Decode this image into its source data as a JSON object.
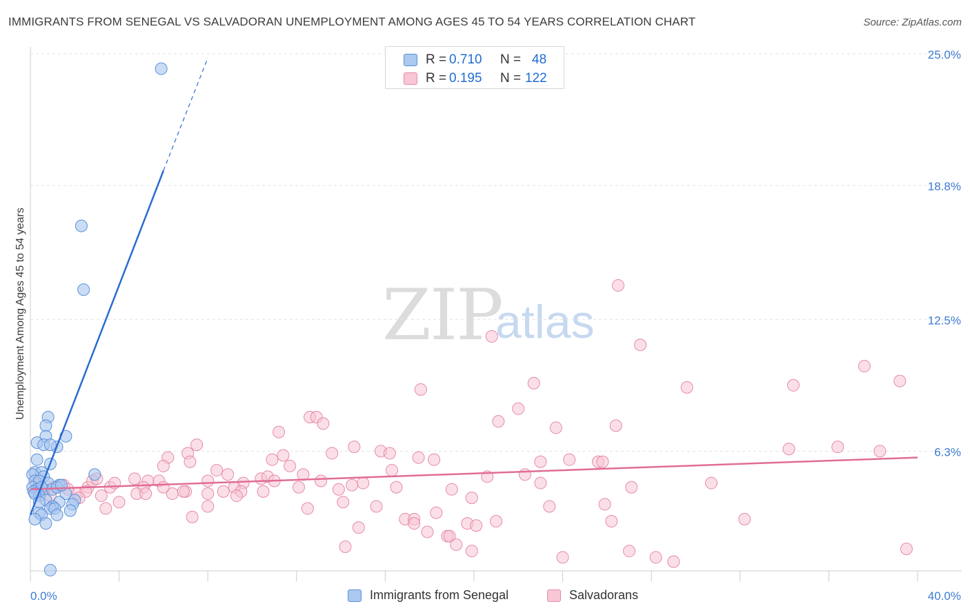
{
  "title": "IMMIGRANTS FROM SENEGAL VS SALVADORAN UNEMPLOYMENT AMONG AGES 45 TO 54 YEARS CORRELATION CHART",
  "source": "Source: ZipAtlas.com",
  "watermark": {
    "zip": "ZIP",
    "atlas": "atlas"
  },
  "legend": {
    "rows": [
      {
        "r_label": "R =",
        "r_value": "0.710",
        "n_label": "N =",
        "n_value": "48",
        "fill": "#aac8f0",
        "stroke": "#5a8fd6"
      },
      {
        "r_label": "R =",
        "r_value": "0.195",
        "n_label": "N =",
        "n_value": "122",
        "fill": "#f8c6d5",
        "stroke": "#e889a8"
      }
    ]
  },
  "colors": {
    "blue_fill": "#a9c6ef",
    "blue_stroke": "#5b90d8",
    "blue_line": "#2a6bd0",
    "pink_fill": "#f7c4d3",
    "pink_stroke": "#e58aa8",
    "pink_line": "#e06c96",
    "grid": "#e2e2e2",
    "tick_label": "#3d7bd1",
    "axis": "#cccccc"
  },
  "chart_data": {
    "type": "scatter",
    "title": "IMMIGRANTS FROM SENEGAL VS SALVADORAN UNEMPLOYMENT AMONG AGES 45 TO 54 YEARS CORRELATION CHART",
    "xlabel": "",
    "ylabel": "Unemployment Among Ages 45 to 54 years",
    "xlim": [
      0,
      40
    ],
    "ylim": [
      0,
      25.0
    ],
    "x_tick_labels": [
      "0.0%",
      "40.0%"
    ],
    "y_ticks": [
      6.3,
      12.5,
      18.8,
      25.0
    ],
    "y_tick_labels": [
      "6.3%",
      "12.5%",
      "18.8%",
      "25.0%"
    ],
    "grid": true,
    "legend_position": "top-center",
    "series": [
      {
        "name": "Immigrants from Senegal",
        "r": 0.71,
        "n": 48,
        "trend": {
          "x0": 0.0,
          "y0": 3.3,
          "x1": 6.0,
          "y1": 19.5,
          "dash_x1": 8.0,
          "dash_y1": 24.8
        },
        "points": [
          [
            5.9,
            24.3
          ],
          [
            2.3,
            16.9
          ],
          [
            2.4,
            13.9
          ],
          [
            0.8,
            7.9
          ],
          [
            0.7,
            7.5
          ],
          [
            1.6,
            7.0
          ],
          [
            0.7,
            7.0
          ],
          [
            0.3,
            6.7
          ],
          [
            0.6,
            6.6
          ],
          [
            1.2,
            6.5
          ],
          [
            0.9,
            6.6
          ],
          [
            0.3,
            5.9
          ],
          [
            0.9,
            5.7
          ],
          [
            0.2,
            5.3
          ],
          [
            0.5,
            5.3
          ],
          [
            0.1,
            5.2
          ],
          [
            2.9,
            5.2
          ],
          [
            0.6,
            5.1
          ],
          [
            0.2,
            4.9
          ],
          [
            0.4,
            4.9
          ],
          [
            0.8,
            4.8
          ],
          [
            1.3,
            4.7
          ],
          [
            0.1,
            4.6
          ],
          [
            0.6,
            4.5
          ],
          [
            1.0,
            4.5
          ],
          [
            0.3,
            4.5
          ],
          [
            0.5,
            4.6
          ],
          [
            0.15,
            4.4
          ],
          [
            1.2,
            4.6
          ],
          [
            0.4,
            4.2
          ],
          [
            0.2,
            4.3
          ],
          [
            1.6,
            4.3
          ],
          [
            2.0,
            4.0
          ],
          [
            0.7,
            4.0
          ],
          [
            1.3,
            3.9
          ],
          [
            1.0,
            3.7
          ],
          [
            1.9,
            3.8
          ],
          [
            0.9,
            3.6
          ],
          [
            1.1,
            3.6
          ],
          [
            1.8,
            3.5
          ],
          [
            0.4,
            3.4
          ],
          [
            1.2,
            3.3
          ],
          [
            0.5,
            3.3
          ],
          [
            0.2,
            3.1
          ],
          [
            0.7,
            2.9
          ],
          [
            0.4,
            3.9
          ],
          [
            1.4,
            4.7
          ],
          [
            0.9,
            0.7
          ]
        ]
      },
      {
        "name": "Salvadorans",
        "r": 0.195,
        "n": 122,
        "trend": {
          "x0": 0.0,
          "y0": 4.5,
          "x1": 40.0,
          "y1": 6.0
        },
        "points": [
          [
            26.5,
            14.1
          ],
          [
            20.8,
            11.7
          ],
          [
            27.5,
            11.3
          ],
          [
            37.6,
            10.3
          ],
          [
            39.2,
            9.6
          ],
          [
            22.7,
            9.5
          ],
          [
            29.6,
            9.3
          ],
          [
            34.4,
            9.4
          ],
          [
            17.6,
            9.2
          ],
          [
            22.0,
            8.3
          ],
          [
            12.6,
            7.9
          ],
          [
            12.9,
            7.9
          ],
          [
            13.2,
            7.6
          ],
          [
            21.1,
            7.7
          ],
          [
            11.2,
            7.2
          ],
          [
            23.7,
            7.4
          ],
          [
            26.4,
            7.5
          ],
          [
            7.5,
            6.6
          ],
          [
            14.6,
            6.5
          ],
          [
            15.8,
            6.3
          ],
          [
            13.6,
            6.2
          ],
          [
            16.2,
            6.2
          ],
          [
            34.2,
            6.4
          ],
          [
            36.4,
            6.5
          ],
          [
            38.3,
            6.3
          ],
          [
            7.1,
            6.2
          ],
          [
            11.4,
            6.1
          ],
          [
            6.2,
            6.0
          ],
          [
            17.5,
            6.0
          ],
          [
            18.2,
            5.9
          ],
          [
            23.0,
            5.8
          ],
          [
            25.6,
            5.8
          ],
          [
            24.3,
            5.9
          ],
          [
            25.8,
            5.8
          ],
          [
            10.9,
            5.9
          ],
          [
            7.2,
            5.8
          ],
          [
            11.7,
            5.6
          ],
          [
            6.0,
            5.6
          ],
          [
            8.4,
            5.4
          ],
          [
            8.9,
            5.2
          ],
          [
            4.7,
            5.0
          ],
          [
            5.3,
            4.9
          ],
          [
            5.8,
            4.9
          ],
          [
            8.0,
            4.9
          ],
          [
            9.6,
            4.8
          ],
          [
            10.4,
            5.0
          ],
          [
            12.3,
            5.2
          ],
          [
            13.1,
            4.9
          ],
          [
            14.5,
            4.7
          ],
          [
            15.0,
            4.8
          ],
          [
            16.3,
            5.4
          ],
          [
            20.6,
            5.1
          ],
          [
            22.3,
            5.2
          ],
          [
            10.7,
            5.1
          ],
          [
            12.1,
            4.6
          ],
          [
            11.0,
            4.9
          ],
          [
            9.2,
            4.6
          ],
          [
            9.5,
            4.4
          ],
          [
            5.1,
            4.6
          ],
          [
            7.0,
            4.4
          ],
          [
            4.8,
            4.3
          ],
          [
            6.4,
            4.3
          ],
          [
            6.9,
            4.4
          ],
          [
            8.0,
            4.3
          ],
          [
            8.7,
            4.4
          ],
          [
            9.3,
            4.2
          ],
          [
            10.5,
            4.4
          ],
          [
            3.2,
            4.2
          ],
          [
            3.6,
            4.6
          ],
          [
            2.6,
            4.6
          ],
          [
            2.1,
            4.3
          ],
          [
            2.8,
            4.9
          ],
          [
            3.0,
            5.0
          ],
          [
            1.5,
            4.7
          ],
          [
            1.0,
            4.6
          ],
          [
            0.9,
            4.2
          ],
          [
            1.7,
            4.5
          ],
          [
            0.5,
            4.4
          ],
          [
            0.3,
            4.8
          ],
          [
            2.5,
            4.4
          ],
          [
            1.2,
            4.6
          ],
          [
            13.9,
            4.5
          ],
          [
            16.5,
            4.6
          ],
          [
            19.0,
            4.5
          ],
          [
            19.9,
            4.1
          ],
          [
            27.1,
            4.6
          ],
          [
            30.7,
            4.8
          ],
          [
            23.0,
            4.8
          ],
          [
            14.1,
            3.9
          ],
          [
            12.5,
            3.6
          ],
          [
            15.6,
            3.7
          ],
          [
            23.4,
            3.7
          ],
          [
            25.9,
            3.8
          ],
          [
            3.4,
            3.6
          ],
          [
            7.3,
            3.2
          ],
          [
            16.9,
            3.1
          ],
          [
            17.3,
            3.1
          ],
          [
            18.3,
            3.4
          ],
          [
            19.7,
            2.9
          ],
          [
            20.1,
            2.8
          ],
          [
            21.0,
            3.0
          ],
          [
            26.2,
            3.0
          ],
          [
            32.2,
            3.1
          ],
          [
            14.8,
            2.7
          ],
          [
            17.3,
            2.9
          ],
          [
            17.9,
            2.5
          ],
          [
            18.8,
            2.3
          ],
          [
            18.9,
            2.3
          ],
          [
            19.2,
            1.9
          ],
          [
            14.2,
            1.8
          ],
          [
            19.9,
            1.6
          ],
          [
            24.0,
            1.3
          ],
          [
            27.0,
            1.6
          ],
          [
            28.2,
            1.3
          ],
          [
            29.0,
            1.1
          ],
          [
            39.5,
            1.7
          ],
          [
            8.0,
            3.7
          ],
          [
            2.2,
            4.1
          ],
          [
            4.0,
            3.9
          ],
          [
            6.0,
            4.6
          ],
          [
            5.2,
            4.3
          ],
          [
            3.8,
            4.8
          ]
        ]
      }
    ]
  },
  "bottom_legend": [
    "Immigrants from Senegal",
    "Salvadorans"
  ]
}
